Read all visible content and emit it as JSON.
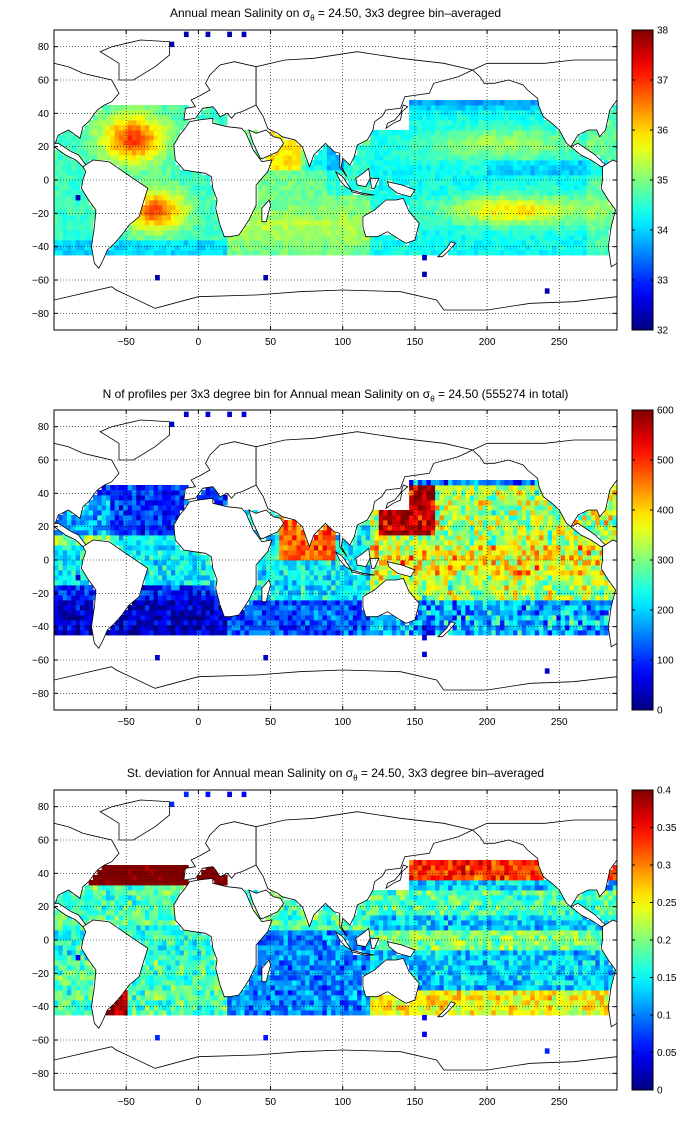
{
  "figure": {
    "xticks": [
      -50,
      0,
      50,
      100,
      150,
      200,
      250
    ],
    "yticks": [
      80,
      60,
      40,
      20,
      0,
      -20,
      -40,
      -60,
      -80
    ],
    "xlim": [
      -100,
      290
    ],
    "ylim": [
      -90,
      90
    ]
  },
  "panels": [
    {
      "title_pre": "Annual mean Salinity on σ",
      "title_sub": "θ",
      "title_post": " = 24.50, 3x3 degree bin–averaged",
      "colorbar": {
        "ticks": [
          "38",
          "37",
          "36",
          "35",
          "34",
          "33",
          "32"
        ],
        "min": 32,
        "max": 38
      }
    },
    {
      "title_pre": "N of profiles per 3x3 degree bin for Annual mean Salinity on σ",
      "title_sub": "θ",
      "title_post": " = 24.50 (555274 in total)",
      "colorbar": {
        "ticks": [
          "600",
          "500",
          "400",
          "300",
          "200",
          "100",
          "0"
        ],
        "min": 0,
        "max": 600
      }
    },
    {
      "title_pre": "St. deviation for Annual mean Salinity on σ",
      "title_sub": "θ",
      "title_post": " = 24.50, 3x3 degree bin–averaged",
      "colorbar": {
        "ticks": [
          "0.4",
          "0.35",
          "0.3",
          "0.25",
          "0.2",
          "0.15",
          "0.1",
          "0.05",
          "0"
        ],
        "min": 0,
        "max": 0.4
      }
    }
  ],
  "colormap": "jet"
}
